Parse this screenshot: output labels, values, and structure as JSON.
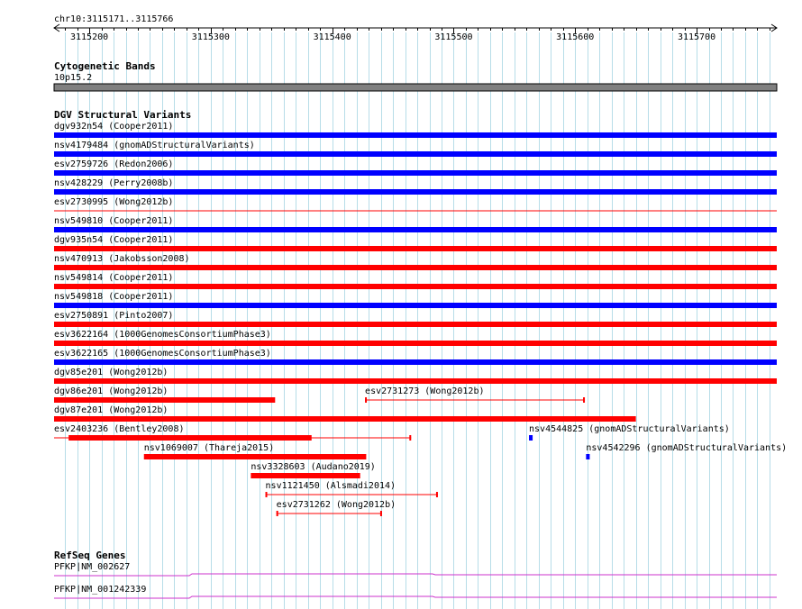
{
  "ruler": {
    "region_label": "chr10:3115171..3115766",
    "start": 3115171,
    "end": 3115766,
    "ticks": [
      "3115200",
      "3115300",
      "3115400",
      "3115500",
      "3115600",
      "3115700"
    ]
  },
  "tracks": {
    "cytoband": {
      "title": "Cytogenetic Bands",
      "band_label": "10p15.2",
      "band_color": "#808080"
    },
    "dgv": {
      "title": "DGV Structural Variants",
      "colors": {
        "gain": "#0000ff",
        "loss": "#ff0000",
        "other": "#cc0000"
      },
      "features": [
        {
          "label": "dgv932n54 (Cooper2011)",
          "start": 3115171,
          "end": 3115766,
          "kind": "gain",
          "style": "bar"
        },
        {
          "label": "nsv4179484 (gnomADStructuralVariants)",
          "start": 3115171,
          "end": 3115766,
          "kind": "gain",
          "style": "bar"
        },
        {
          "label": "esv2759726 (Redon2006)",
          "start": 3115171,
          "end": 3115766,
          "kind": "gain",
          "style": "bar"
        },
        {
          "label": "nsv428229 (Perry2008b)",
          "start": 3115171,
          "end": 3115766,
          "kind": "gain",
          "style": "bar"
        },
        {
          "label": "esv2730995 (Wong2012b)",
          "start": 3115171,
          "end": 3115766,
          "kind": "loss",
          "style": "line"
        },
        {
          "label": "nsv549810 (Cooper2011)",
          "start": 3115171,
          "end": 3115766,
          "kind": "gain",
          "style": "bar"
        },
        {
          "label": "dgv935n54 (Cooper2011)",
          "start": 3115171,
          "end": 3115766,
          "kind": "loss",
          "style": "bar"
        },
        {
          "label": "nsv470913 (Jakobsson2008)",
          "start": 3115171,
          "end": 3115766,
          "kind": "loss",
          "style": "bar"
        },
        {
          "label": "nsv549814 (Cooper2011)",
          "start": 3115171,
          "end": 3115766,
          "kind": "loss",
          "style": "bar"
        },
        {
          "label": "nsv549818 (Cooper2011)",
          "start": 3115171,
          "end": 3115766,
          "kind": "gain",
          "style": "bar"
        },
        {
          "label": "esv2750891 (Pinto2007)",
          "start": 3115171,
          "end": 3115766,
          "kind": "loss",
          "style": "bar"
        },
        {
          "label": "esv3622164 (1000GenomesConsortiumPhase3)",
          "start": 3115171,
          "end": 3115766,
          "kind": "loss",
          "style": "bar"
        },
        {
          "label": "esv3622165 (1000GenomesConsortiumPhase3)",
          "start": 3115171,
          "end": 3115766,
          "kind": "gain",
          "style": "bar"
        },
        {
          "label": "dgv85e201 (Wong2012b)",
          "start": 3115171,
          "end": 3115766,
          "kind": "loss",
          "style": "bar"
        },
        {
          "label": "dgv86e201 (Wong2012b)",
          "start": 3115171,
          "end": 3115353,
          "kind": "loss",
          "style": "bar"
        },
        {
          "label": "esv2731273 (Wong2012b)",
          "start": 3115427,
          "end": 3115608,
          "kind": "loss",
          "style": "line",
          "same_row_as_prev": true
        },
        {
          "label": "dgv87e201 (Wong2012b)",
          "start": 3115171,
          "end": 3115650,
          "kind": "loss",
          "style": "bar"
        },
        {
          "label": "esv2403236 (Bentley2008)",
          "start": 3115171,
          "end": 3115465,
          "kind": "loss",
          "style": "thick-line",
          "thick_start": 3115183,
          "thick_end": 3115383
        },
        {
          "label": "nsv4544825 (gnomADStructuralVariants)",
          "start": 3115562,
          "end": 3115565,
          "kind": "gain",
          "style": "bar",
          "same_row_as_prev": true
        },
        {
          "label": "nsv1069007 (Thareja2015)",
          "start": 3115245,
          "end": 3115428,
          "kind": "loss",
          "style": "bar"
        },
        {
          "label": "nsv4542296 (gnomADStructuralVariants)",
          "start": 3115609,
          "end": 3115612,
          "kind": "gain",
          "style": "bar",
          "same_row_as_prev": true
        },
        {
          "label": "nsv3328603 (Audano2019)",
          "start": 3115333,
          "end": 3115423,
          "kind": "loss",
          "style": "bar"
        },
        {
          "label": "nsv1121450 (Alsmadi2014)",
          "start": 3115345,
          "end": 3115487,
          "kind": "loss",
          "style": "line"
        },
        {
          "label": "esv2731262 (Wong2012b)",
          "start": 3115354,
          "end": 3115441,
          "kind": "loss",
          "style": "line"
        }
      ]
    },
    "refseq": {
      "title": "RefSeq Genes",
      "color": "#cc33cc",
      "genes": [
        {
          "label": "PFKP|NM_002627"
        },
        {
          "label": "PFKP|NM_001242339"
        }
      ]
    }
  }
}
